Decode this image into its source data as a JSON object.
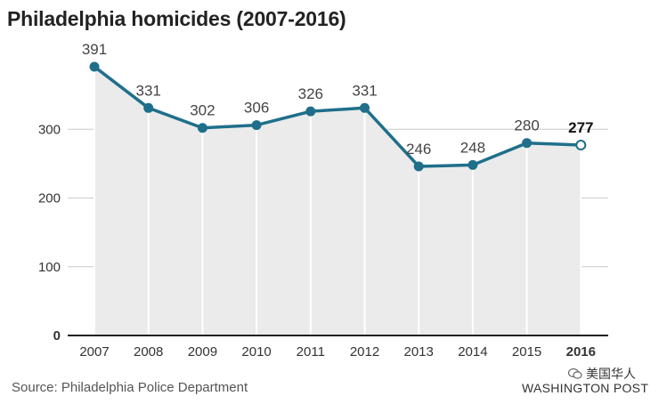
{
  "title": "Philadelphia homicides (2007-2016)",
  "source": "Source: Philadelphia Police Department",
  "publisher": "WASHINGTON POST",
  "watermark": "美国华人",
  "colors": {
    "line": "#1f6f8b",
    "area": "#ebebeb",
    "grid": "#cccccc",
    "baseline": "#222222"
  },
  "chart_data": {
    "type": "area",
    "title": "Philadelphia homicides (2007-2016)",
    "xlabel": "",
    "ylabel": "",
    "categories": [
      "2007",
      "2008",
      "2009",
      "2010",
      "2011",
      "2012",
      "2013",
      "2014",
      "2015",
      "2016"
    ],
    "values": [
      391,
      331,
      302,
      306,
      326,
      331,
      246,
      248,
      280,
      277
    ],
    "data_labels": [
      "391",
      "331",
      "302",
      "306",
      "326",
      "331",
      "246",
      "248",
      "280",
      "277"
    ],
    "highlight": "2016",
    "ylim": [
      0,
      400
    ],
    "yticks": [
      0,
      100,
      200,
      300
    ],
    "ytick_labels": [
      "0",
      "100",
      "200",
      "300"
    ],
    "grid": true,
    "legend": "none"
  }
}
